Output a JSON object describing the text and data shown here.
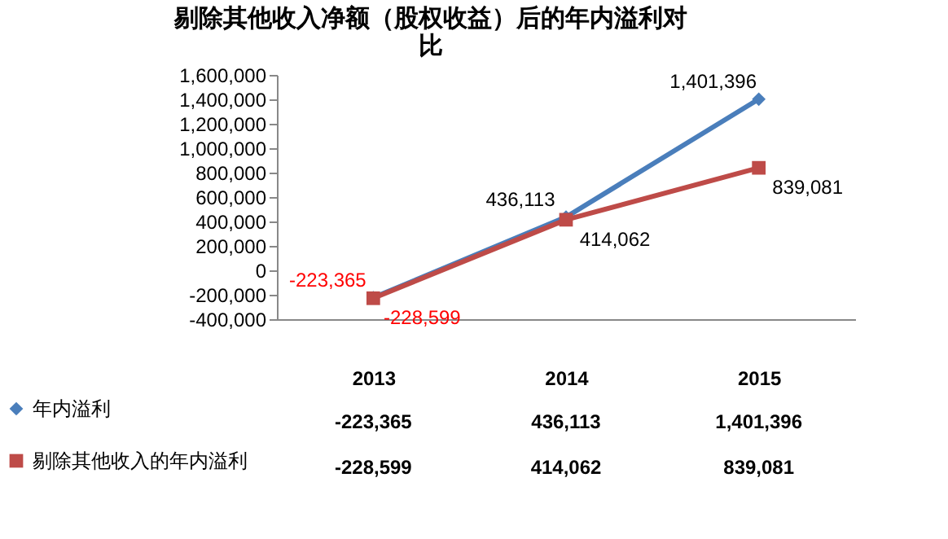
{
  "chart_data": {
    "type": "line",
    "title": [
      "剔除其他收入净额（股权收益）后的年内溢利对",
      "比"
    ],
    "categories": [
      "2013",
      "2014",
      "2015"
    ],
    "series": [
      {
        "name": "年内溢利",
        "color": "#4a7ebb",
        "marker": "diamond",
        "values": [
          -223365,
          436113,
          1401396
        ],
        "value_labels": [
          "-223,365",
          "436,113",
          "1,401,396"
        ]
      },
      {
        "name": "剔除其他收入的年内溢利",
        "color": "#be4b48",
        "marker": "square",
        "values": [
          -228599,
          414062,
          839081
        ],
        "value_labels": [
          "-228,599",
          "414,062",
          "839,081"
        ]
      }
    ],
    "ylim": [
      -400000,
      1600000
    ],
    "yticks": [
      {
        "value": -400000,
        "label": "-400,000"
      },
      {
        "value": -200000,
        "label": "-200,000"
      },
      0,
      {
        "value": 200000,
        "label": "200,000"
      },
      {
        "value": 400000,
        "label": "400,000"
      },
      {
        "value": 600000,
        "label": "600,000"
      },
      {
        "value": 800000,
        "label": "800,000"
      },
      {
        "value": 1000000,
        "label": "1,000,000"
      },
      {
        "value": 1200000,
        "label": "1,200,000"
      },
      {
        "value": 1400000,
        "label": "1,400,000"
      },
      {
        "value": 1600000,
        "label": "1,600,000"
      }
    ],
    "legend": "bottom left"
  }
}
